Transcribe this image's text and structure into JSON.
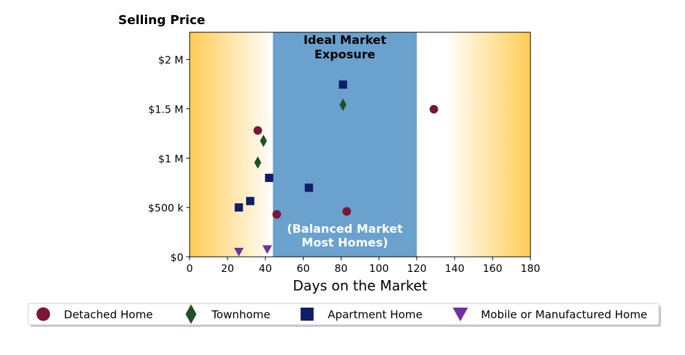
{
  "chart_data": {
    "type": "scatter",
    "title": "Selling Price",
    "xlabel": "Days on the Market",
    "ylabel": "",
    "xlim": [
      0,
      180
    ],
    "ylim": [
      0,
      2275000
    ],
    "x_ticks": [
      0,
      20,
      40,
      60,
      80,
      100,
      120,
      140,
      160,
      180
    ],
    "x_tick_labels": [
      "0",
      "20",
      "40",
      "60",
      "80",
      "100",
      "120",
      "140",
      "160",
      "180"
    ],
    "y_ticks": [
      0,
      500000,
      1000000,
      1500000,
      2000000
    ],
    "y_tick_labels": [
      "$0",
      "$500 k",
      "$1 M",
      "$1.5 M",
      "$2 M"
    ],
    "grid": false,
    "legend_position": "bottom",
    "highlight_band": {
      "x_range": [
        44,
        120
      ],
      "color": "#6aa1cd",
      "label_top": "Ideal Market\nExposure",
      "label_bottom": "(Balanced Market\nMost Homes)"
    },
    "background_gradient": {
      "edge_color": "#ffcc55",
      "center_color": "#ffffff"
    },
    "series": [
      {
        "name": "Detached Home",
        "marker": "circle",
        "color": "#7b1535",
        "points": [
          {
            "x": 36,
            "y": 1280000
          },
          {
            "x": 46,
            "y": 430000
          },
          {
            "x": 83,
            "y": 460000
          },
          {
            "x": 129,
            "y": 1495000
          }
        ]
      },
      {
        "name": "Townhome",
        "marker": "diamond",
        "color": "#1e5125",
        "points": [
          {
            "x": 39,
            "y": 1175000
          },
          {
            "x": 36,
            "y": 955000
          },
          {
            "x": 81,
            "y": 1540000
          }
        ]
      },
      {
        "name": "Apartment Home",
        "marker": "square",
        "color": "#0e1e6a",
        "points": [
          {
            "x": 26,
            "y": 500000
          },
          {
            "x": 32,
            "y": 565000
          },
          {
            "x": 42,
            "y": 800000
          },
          {
            "x": 63,
            "y": 700000
          },
          {
            "x": 81,
            "y": 1745000
          }
        ]
      },
      {
        "name": "Mobile or Manufactured Home",
        "marker": "triangle-down",
        "color": "#7030a0",
        "points": [
          {
            "x": 26,
            "y": 50000
          },
          {
            "x": 41,
            "y": 75000
          }
        ]
      }
    ]
  }
}
